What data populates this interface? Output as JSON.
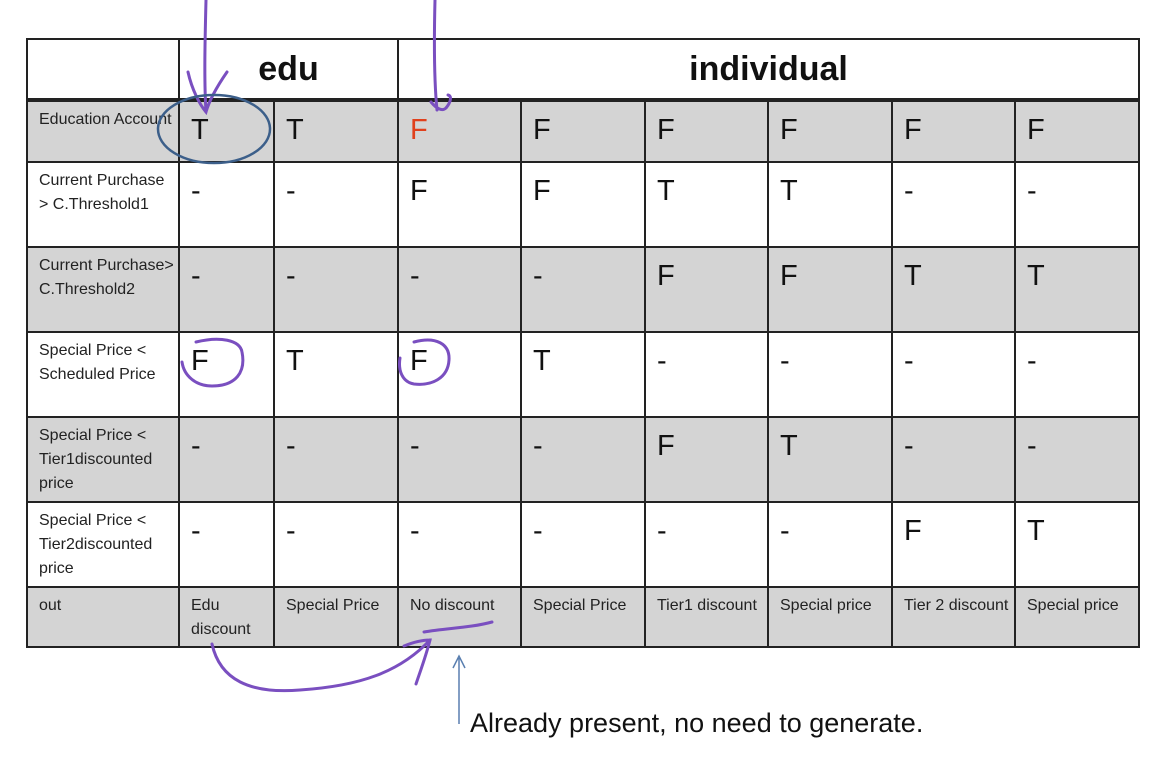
{
  "table": {
    "groups": [
      {
        "label": "",
        "span": 1
      },
      {
        "label": "edu",
        "span": 2
      },
      {
        "label": "individual",
        "span": 6
      }
    ],
    "rows": [
      {
        "label": "Education Account",
        "values": [
          "T",
          "T",
          "F",
          "F",
          "F",
          "F",
          "F",
          "F"
        ],
        "highlight_red_index": 2
      },
      {
        "label": "Current Purchase > C.Threshold1",
        "values": [
          "-",
          "-",
          "F",
          "F",
          "T",
          "T",
          "-",
          "-"
        ]
      },
      {
        "label": "Current Purchase> C.Threshold2",
        "values": [
          "-",
          "-",
          "-",
          "-",
          "F",
          "F",
          "T",
          "T"
        ]
      },
      {
        "label": "Special Price < Scheduled Price",
        "values": [
          "F",
          "T",
          "F",
          "T",
          "-",
          "-",
          "-",
          "-"
        ]
      },
      {
        "label": "Special Price < Tier1discounted price",
        "values": [
          "-",
          "-",
          "-",
          "-",
          "F",
          "T",
          "-",
          "-"
        ]
      },
      {
        "label": "Special Price < Tier2discounted price",
        "values": [
          "-",
          "-",
          "-",
          "-",
          "-",
          "-",
          "F",
          "T"
        ]
      }
    ],
    "out_row": {
      "label": "out",
      "values": [
        "Edu discount",
        "Special Price",
        "No discount",
        "Special Price",
        "Tier1 discount",
        "Special price",
        "Tier 2 discount",
        "Special price"
      ]
    }
  },
  "annotation_note": "Already present, no need to generate.",
  "colors": {
    "red_value": "#e0401c",
    "gray_row": "#d4d4d4",
    "ink_purple": "#7a4fc0",
    "ink_blue": "#3c5f8a"
  }
}
